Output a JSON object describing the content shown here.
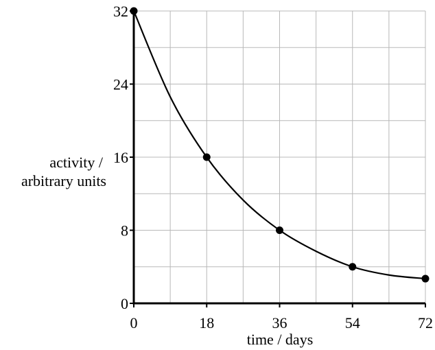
{
  "chart_data": {
    "type": "scatter",
    "xlabel": "time / days",
    "ylabel_line1": "activity /",
    "ylabel_line2": "arbitrary units",
    "xlim": [
      0,
      72
    ],
    "ylim": [
      0,
      32
    ],
    "xticks": [
      0,
      18,
      36,
      54,
      72
    ],
    "yticks": [
      0,
      8,
      16,
      24,
      32
    ],
    "grid": true,
    "grid_x_step": 9,
    "grid_y_step": 4,
    "legend": "none",
    "points": [
      {
        "x": 0,
        "y": 32
      },
      {
        "x": 18,
        "y": 16
      },
      {
        "x": 36,
        "y": 8
      },
      {
        "x": 54,
        "y": 4
      },
      {
        "x": 72,
        "y": 2.7
      }
    ],
    "curve": {
      "description": "smooth decay curve through points",
      "x": [
        0,
        9,
        18,
        27,
        36,
        45,
        54,
        63,
        72
      ],
      "y": [
        32,
        22.6,
        16,
        11.3,
        8,
        5.7,
        4,
        3.1,
        2.7
      ]
    }
  }
}
